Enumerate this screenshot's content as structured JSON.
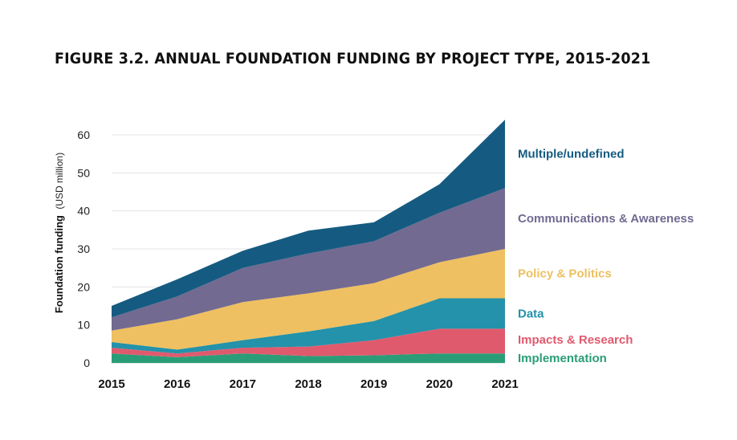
{
  "title": "FIGURE 3.2.  ANNUAL FOUNDATION FUNDING BY PROJECT TYPE, 2015-2021",
  "chart_data": {
    "type": "area",
    "stacked": true,
    "title": "FIGURE 3.2.  ANNUAL FOUNDATION FUNDING BY PROJECT TYPE, 2015-2021",
    "xlabel": "",
    "ylabel": "Foundation funding",
    "ylabel_unit": "(USD million)",
    "x": [
      "2015",
      "2016",
      "2017",
      "2018",
      "2019",
      "2020",
      "2021"
    ],
    "ylim": [
      0,
      65
    ],
    "yticks": [
      0,
      10,
      20,
      30,
      40,
      50,
      60
    ],
    "grid": true,
    "legend_placement": "right",
    "series": [
      {
        "name": "Implementation",
        "color": "#2a9d78",
        "values": [
          2.5,
          1.5,
          2.5,
          1.8,
          2.0,
          2.5,
          2.5
        ]
      },
      {
        "name": "Impacts & Research",
        "color": "#e05a6e",
        "values": [
          1.5,
          1.0,
          1.5,
          2.5,
          4.0,
          6.5,
          6.5
        ]
      },
      {
        "name": "Data",
        "color": "#2392aa",
        "values": [
          1.5,
          1.0,
          2.0,
          4.0,
          5.0,
          8.0,
          8.0
        ]
      },
      {
        "name": "Policy & Politics",
        "color": "#eec061",
        "values": [
          3.0,
          8.0,
          10.0,
          10.0,
          10.0,
          9.5,
          13.0
        ]
      },
      {
        "name": "Communications & Awareness",
        "color": "#726a91",
        "values": [
          3.5,
          6.0,
          9.0,
          10.5,
          11.0,
          13.0,
          16.0
        ]
      },
      {
        "name": "Multiple/undefined",
        "color": "#155b81",
        "values": [
          3.0,
          4.5,
          4.5,
          6.0,
          5.0,
          7.5,
          18.0
        ]
      }
    ]
  }
}
